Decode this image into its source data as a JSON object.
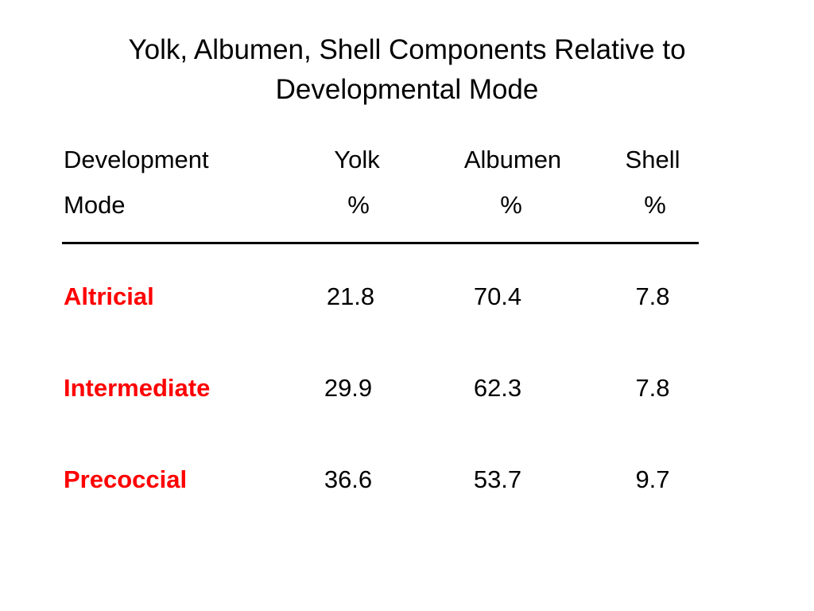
{
  "title": {
    "line1": "Yolk, Albumen, Shell Components Relative to",
    "line2": "Developmental Mode"
  },
  "table": {
    "headers": [
      {
        "line1": "Development",
        "line2": "Mode"
      },
      {
        "line1": "Yolk",
        "line2": "%"
      },
      {
        "line1": "Albumen",
        "line2": "%"
      },
      {
        "line1": "Shell",
        "line2": "%"
      }
    ],
    "rows": [
      {
        "mode": "Altricial",
        "yolk": "21.8",
        "albumen": "70.4",
        "shell": "7.8"
      },
      {
        "mode": "Intermediate",
        "yolk": "29.9",
        "albumen": "62.3",
        "shell": "7.8"
      },
      {
        "mode": "Precoccial",
        "yolk": "36.6",
        "albumen": "53.7",
        "shell": "9.7"
      }
    ],
    "label_color": "#ff0000"
  }
}
